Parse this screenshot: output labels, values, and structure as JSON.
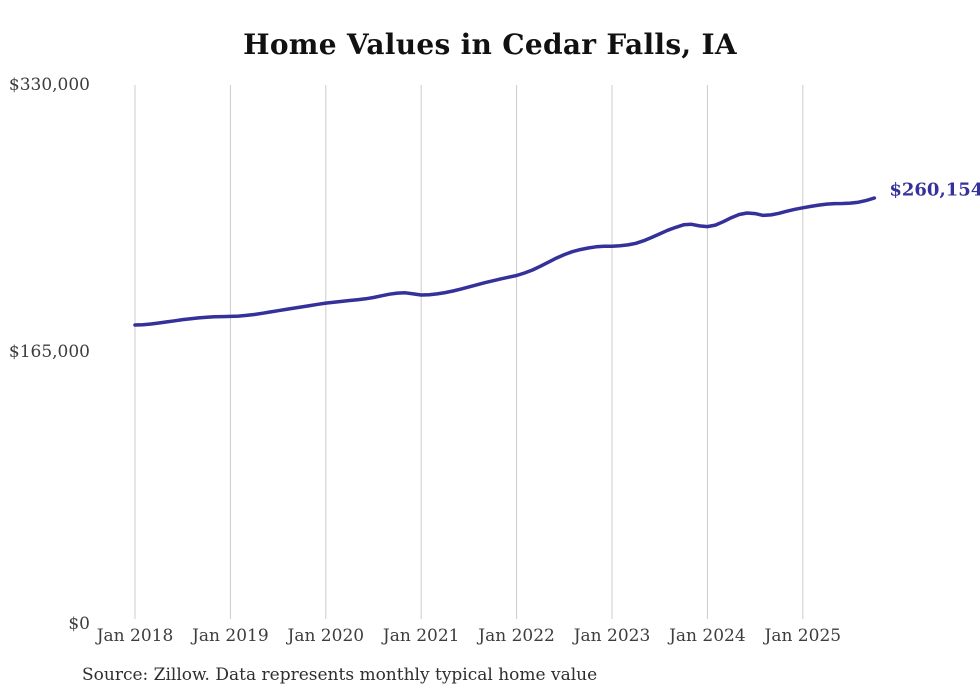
{
  "title": "Home Values in Cedar Falls, IA",
  "source_note": "Source: Zillow. Data represents monthly typical home value",
  "end_label": "$260,154",
  "colors": {
    "line": "#34319b",
    "grid": "#cccccc",
    "axis_text": "#3d3d3d",
    "title_text": "#111111",
    "source_text": "#2e2e2e",
    "background": "#ffffff"
  },
  "chart_data": {
    "type": "line",
    "title": "Home Values in Cedar Falls, IA",
    "xlabel": "",
    "ylabel": "",
    "x_start": "2018-01",
    "x_end": "2025-10",
    "x_unit": "month",
    "ylim": [
      0,
      330000
    ],
    "grid": "vertical-gridlines-at-january",
    "legend": "none",
    "x_tick_labels": [
      "Jan 2018",
      "Jan 2019",
      "Jan 2020",
      "Jan 2021",
      "Jan 2022",
      "Jan 2023",
      "Jan 2024",
      "Jan 2025"
    ],
    "y_ticks": [
      {
        "label": "$330,000",
        "value": 330000
      },
      {
        "label": "$165,000",
        "value": 165000
      },
      {
        "label": "$0",
        "value": 0
      }
    ],
    "last_value": 260154,
    "last_value_label": "$260,154",
    "series": [
      {
        "name": "Typical home value (monthly)",
        "values": [
          181700,
          181900,
          182300,
          182900,
          183600,
          184300,
          185000,
          185600,
          186100,
          186500,
          186800,
          186900,
          187000,
          187200,
          187600,
          188200,
          188900,
          189700,
          190500,
          191300,
          192100,
          192900,
          193700,
          194500,
          195200,
          195800,
          196300,
          196800,
          197300,
          197900,
          198700,
          199700,
          200700,
          201400,
          201600,
          200900,
          200200,
          200400,
          200900,
          201700,
          202700,
          203900,
          205200,
          206500,
          207800,
          209000,
          210200,
          211200,
          212300,
          213800,
          215700,
          218000,
          220500,
          223000,
          225200,
          227000,
          228300,
          229300,
          230000,
          230300,
          230400,
          230700,
          231200,
          232200,
          233800,
          235800,
          238000,
          240200,
          242000,
          243600,
          243900,
          242900,
          242500,
          243400,
          245500,
          248000,
          250000,
          250900,
          250500,
          249400,
          249700,
          250700,
          252000,
          253200,
          254100,
          255000,
          255800,
          256400,
          256700,
          256800,
          257000,
          257600,
          258700,
          260154
        ]
      }
    ]
  }
}
